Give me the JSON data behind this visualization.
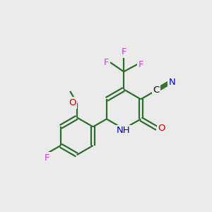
{
  "background_color": "#ebebeb",
  "bond_color": "#2d6e2d",
  "line_width": 1.6,
  "atom_colors": {
    "F": "#cc44cc",
    "O": "#cc0000",
    "N": "#0000cc",
    "C": "#000000"
  },
  "font_size": 9.5,
  "ring_r": 0.95,
  "phen_r": 0.9
}
